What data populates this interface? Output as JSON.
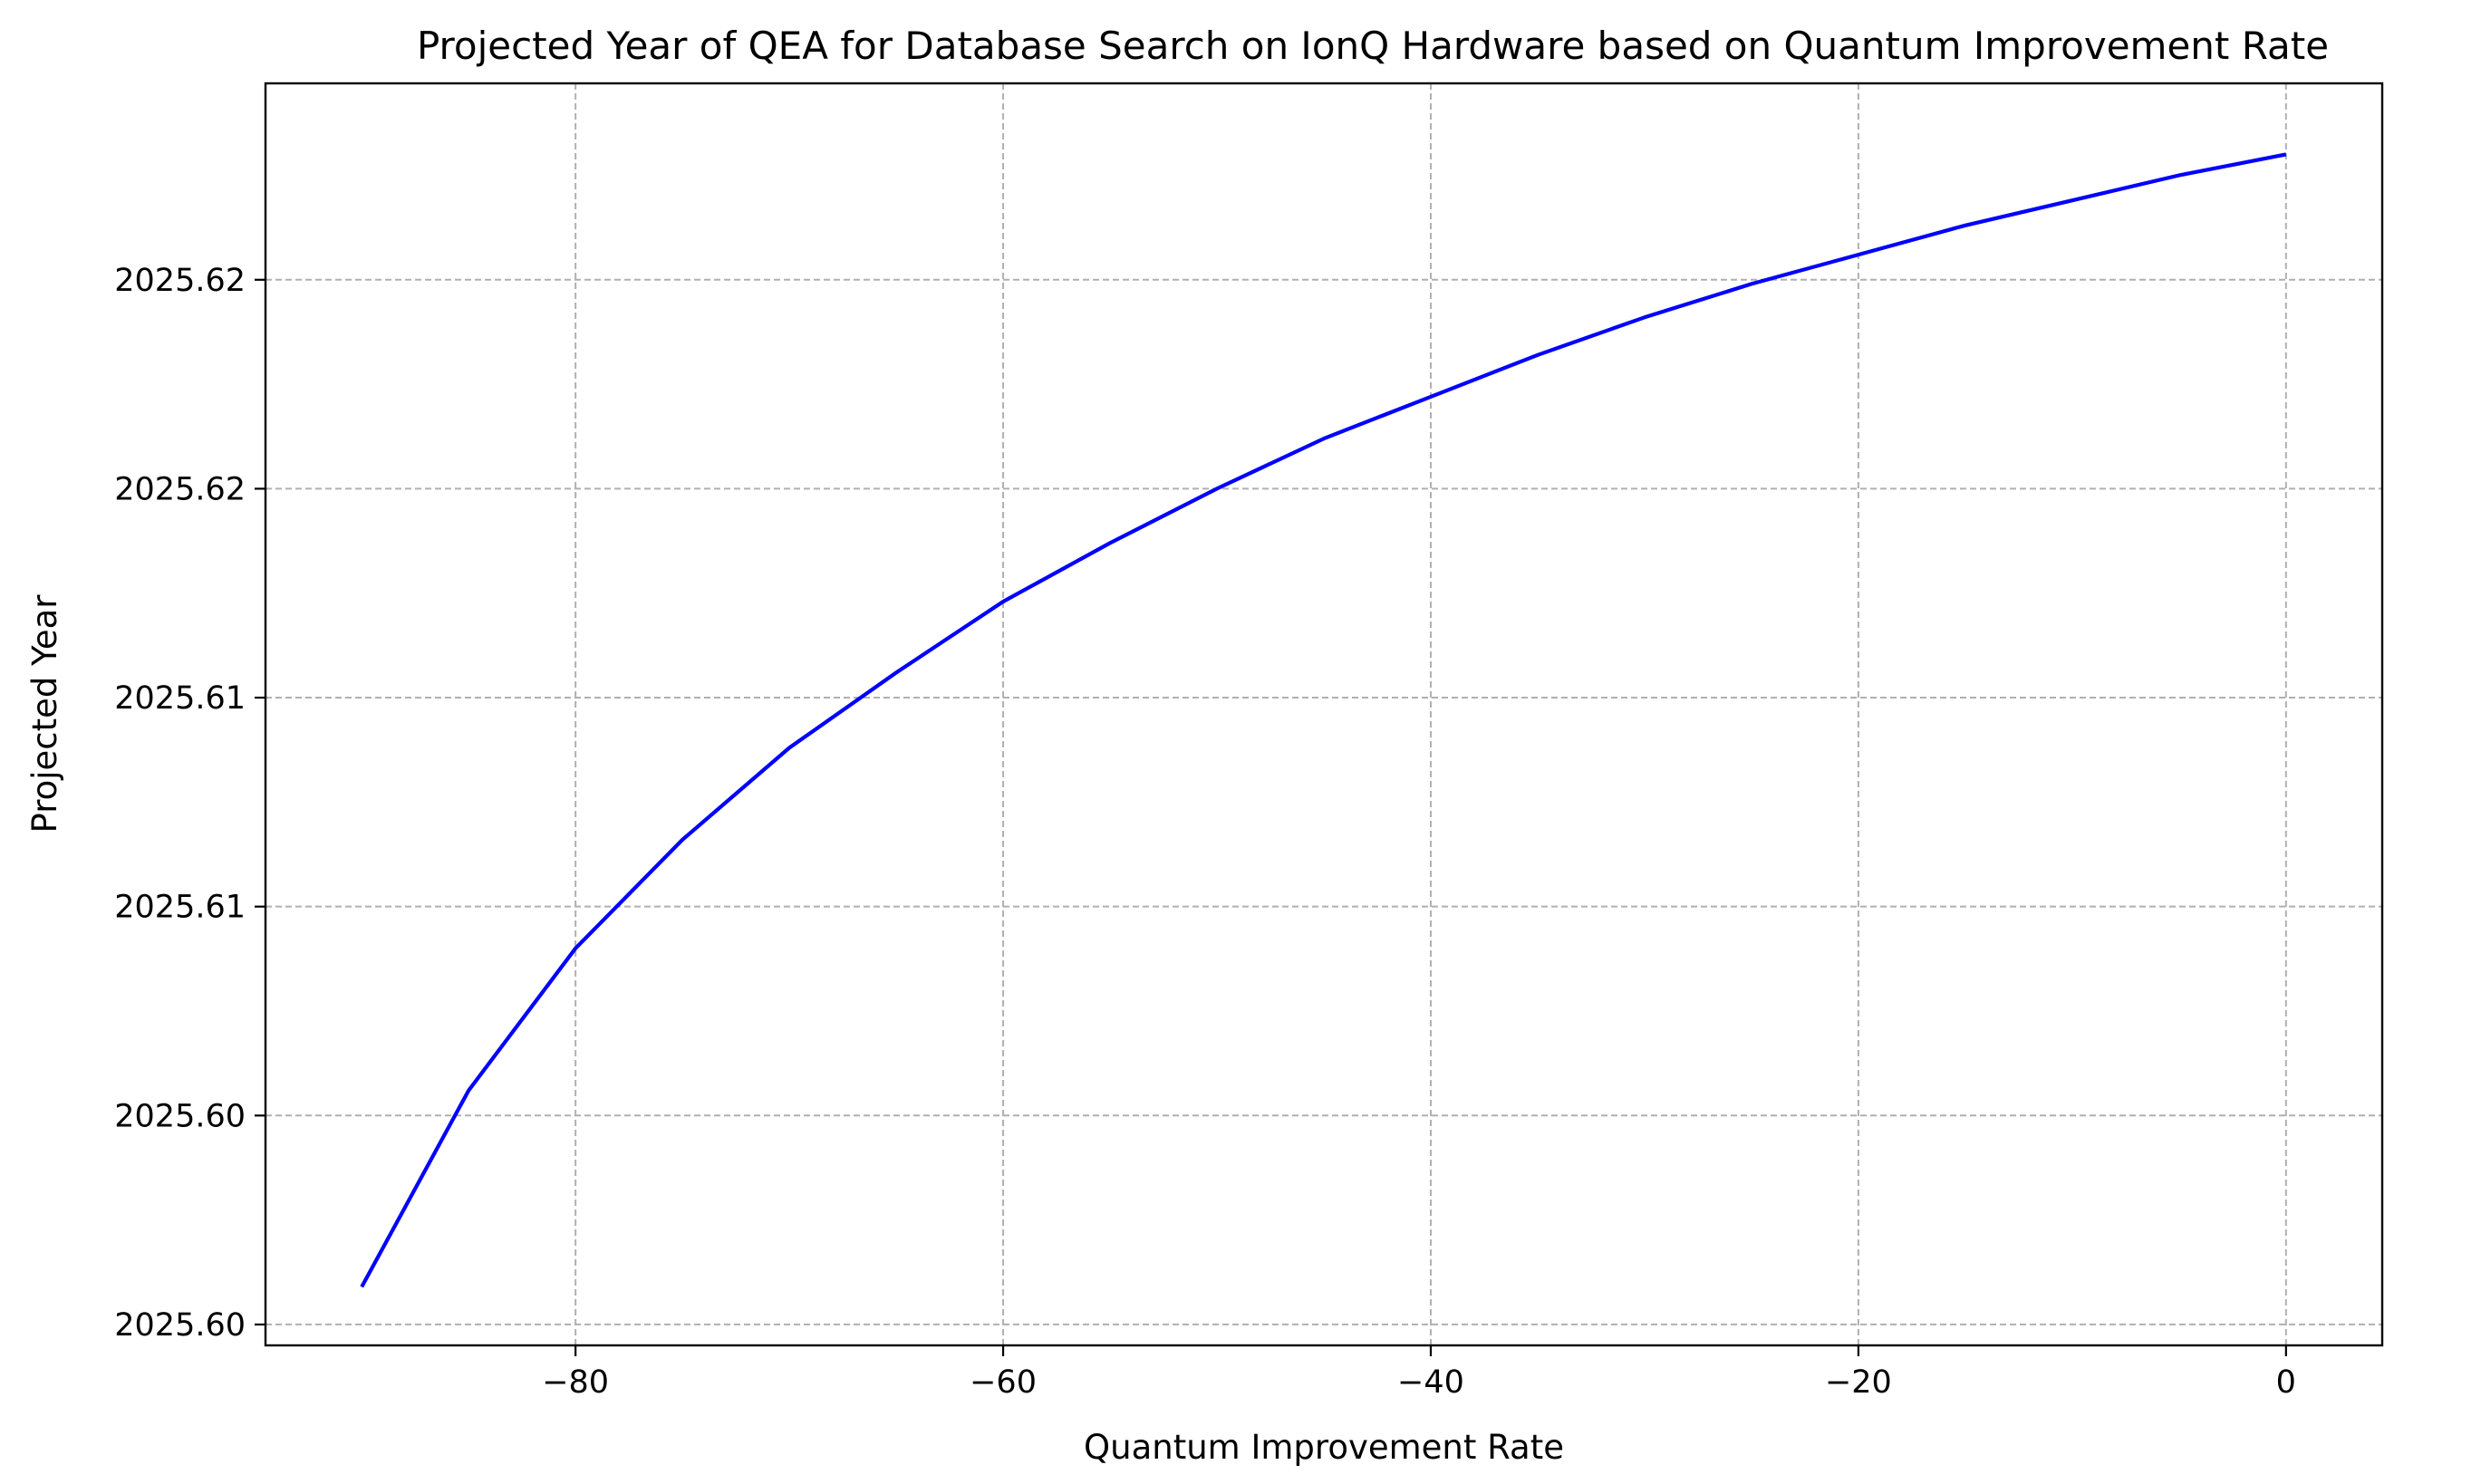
{
  "chart_data": {
    "type": "line",
    "title": "Projected Year of QEA for Database Search on IonQ Hardware based on Quantum Improvement Rate",
    "xlabel": "Quantum Improvement Rate",
    "ylabel": "Projected Year",
    "xlim": [
      -94.5,
      4.5
    ],
    "ylim": [
      2025.5995,
      2025.6297
    ],
    "x_ticks": [
      {
        "value": -80,
        "label": "−80"
      },
      {
        "value": -60,
        "label": "−60"
      },
      {
        "value": -40,
        "label": "−40"
      },
      {
        "value": -20,
        "label": "−20"
      },
      {
        "value": 0,
        "label": "0"
      }
    ],
    "y_ticks": [
      {
        "value": 2025.6,
        "label": "2025.60"
      },
      {
        "value": 2025.605,
        "label": "2025.60"
      },
      {
        "value": 2025.61,
        "label": "2025.61"
      },
      {
        "value": 2025.615,
        "label": "2025.61"
      },
      {
        "value": 2025.62,
        "label": "2025.62"
      },
      {
        "value": 2025.625,
        "label": "2025.62"
      }
    ],
    "grid": true,
    "series": [
      {
        "color": "#0000ff",
        "x": [
          -90,
          -85,
          -80,
          -75,
          -70,
          -65,
          -60,
          -55,
          -50,
          -45,
          -40,
          -35,
          -30,
          -25,
          -20,
          -15,
          -10,
          -5,
          0
        ],
        "y": [
          2025.6009,
          2025.6056,
          2025.609,
          2025.6116,
          2025.6138,
          2025.6156,
          2025.6173,
          2025.6187,
          2025.62,
          2025.6212,
          2025.6222,
          2025.6232,
          2025.6241,
          2025.6249,
          2025.6256,
          2025.6263,
          2025.6269,
          2025.6275,
          2025.628
        ]
      }
    ]
  }
}
